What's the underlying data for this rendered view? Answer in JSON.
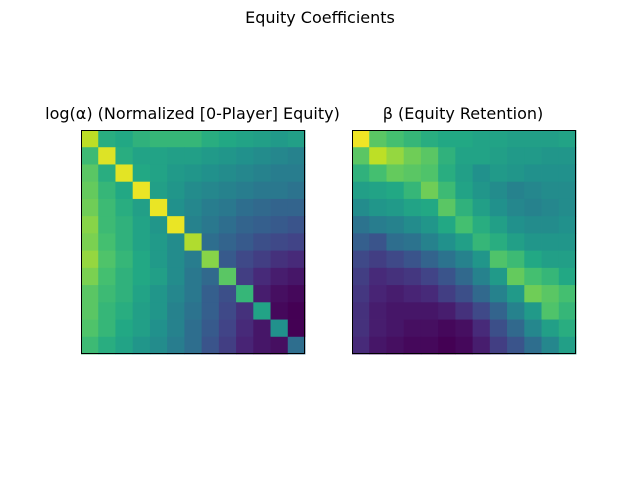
{
  "figure": {
    "title": "Equity Coefficients"
  },
  "chart_data": [
    {
      "type": "heatmap",
      "title": "log(α) (Normalized [0-Player] Equity)",
      "colormap": "viridis",
      "vmin": 0,
      "vmax": 1,
      "axes_visible": false,
      "rows": 13,
      "cols": 13,
      "values": [
        [
          0.9,
          0.62,
          0.6,
          0.64,
          0.66,
          0.66,
          0.66,
          0.62,
          0.6,
          0.58,
          0.56,
          0.54,
          0.56
        ],
        [
          0.68,
          0.95,
          0.62,
          0.58,
          0.58,
          0.56,
          0.56,
          0.54,
          0.52,
          0.5,
          0.48,
          0.46,
          0.44
        ],
        [
          0.74,
          0.62,
          0.96,
          0.6,
          0.58,
          0.54,
          0.52,
          0.5,
          0.48,
          0.46,
          0.44,
          0.42,
          0.42
        ],
        [
          0.76,
          0.66,
          0.6,
          0.97,
          0.56,
          0.52,
          0.48,
          0.46,
          0.44,
          0.42,
          0.4,
          0.4,
          0.38
        ],
        [
          0.78,
          0.68,
          0.62,
          0.56,
          0.97,
          0.5,
          0.46,
          0.42,
          0.4,
          0.36,
          0.34,
          0.32,
          0.32
        ],
        [
          0.82,
          0.68,
          0.64,
          0.58,
          0.52,
          0.97,
          0.44,
          0.4,
          0.36,
          0.32,
          0.3,
          0.28,
          0.26
        ],
        [
          0.8,
          0.7,
          0.64,
          0.58,
          0.54,
          0.48,
          0.88,
          0.36,
          0.32,
          0.28,
          0.24,
          0.22,
          0.2
        ],
        [
          0.84,
          0.72,
          0.66,
          0.6,
          0.54,
          0.48,
          0.42,
          0.82,
          0.28,
          0.22,
          0.18,
          0.14,
          0.12
        ],
        [
          0.8,
          0.7,
          0.64,
          0.6,
          0.56,
          0.48,
          0.4,
          0.34,
          0.74,
          0.18,
          0.12,
          0.08,
          0.06
        ],
        [
          0.74,
          0.68,
          0.64,
          0.58,
          0.52,
          0.46,
          0.4,
          0.3,
          0.24,
          0.66,
          0.08,
          0.04,
          0.02
        ],
        [
          0.74,
          0.66,
          0.62,
          0.56,
          0.52,
          0.44,
          0.38,
          0.3,
          0.22,
          0.14,
          0.58,
          0.02,
          0.0
        ],
        [
          0.72,
          0.66,
          0.6,
          0.56,
          0.5,
          0.44,
          0.36,
          0.28,
          0.2,
          0.12,
          0.06,
          0.5,
          0.0
        ],
        [
          0.68,
          0.62,
          0.58,
          0.52,
          0.48,
          0.42,
          0.36,
          0.26,
          0.18,
          0.1,
          0.06,
          0.04,
          0.36
        ]
      ]
    },
    {
      "type": "heatmap",
      "title": "β (Equity Retention)",
      "colormap": "viridis",
      "vmin": 0,
      "vmax": 1,
      "axes_visible": false,
      "rows": 13,
      "cols": 13,
      "values": [
        [
          0.98,
          0.74,
          0.7,
          0.66,
          0.62,
          0.6,
          0.6,
          0.58,
          0.58,
          0.56,
          0.56,
          0.56,
          0.58
        ],
        [
          0.74,
          0.9,
          0.84,
          0.78,
          0.74,
          0.64,
          0.58,
          0.58,
          0.56,
          0.54,
          0.54,
          0.52,
          0.52
        ],
        [
          0.64,
          0.7,
          0.76,
          0.74,
          0.72,
          0.62,
          0.56,
          0.5,
          0.54,
          0.52,
          0.5,
          0.5,
          0.5
        ],
        [
          0.56,
          0.58,
          0.6,
          0.66,
          0.78,
          0.68,
          0.58,
          0.52,
          0.48,
          0.44,
          0.46,
          0.48,
          0.48
        ],
        [
          0.48,
          0.52,
          0.54,
          0.58,
          0.6,
          0.74,
          0.64,
          0.56,
          0.5,
          0.46,
          0.44,
          0.46,
          0.48
        ],
        [
          0.38,
          0.42,
          0.44,
          0.48,
          0.52,
          0.6,
          0.7,
          0.62,
          0.56,
          0.5,
          0.48,
          0.48,
          0.5
        ],
        [
          0.3,
          0.26,
          0.36,
          0.38,
          0.44,
          0.5,
          0.56,
          0.66,
          0.62,
          0.56,
          0.52,
          0.52,
          0.52
        ],
        [
          0.22,
          0.18,
          0.22,
          0.26,
          0.32,
          0.38,
          0.44,
          0.52,
          0.72,
          0.68,
          0.6,
          0.56,
          0.56
        ],
        [
          0.18,
          0.12,
          0.14,
          0.16,
          0.2,
          0.26,
          0.34,
          0.44,
          0.54,
          0.76,
          0.7,
          0.66,
          0.6
        ],
        [
          0.16,
          0.1,
          0.08,
          0.1,
          0.12,
          0.18,
          0.24,
          0.34,
          0.44,
          0.54,
          0.78,
          0.74,
          0.7
        ],
        [
          0.14,
          0.08,
          0.06,
          0.06,
          0.06,
          0.08,
          0.14,
          0.22,
          0.32,
          0.44,
          0.54,
          0.72,
          0.66
        ],
        [
          0.14,
          0.08,
          0.06,
          0.04,
          0.04,
          0.02,
          0.04,
          0.12,
          0.24,
          0.34,
          0.46,
          0.56,
          0.62
        ],
        [
          0.12,
          0.06,
          0.04,
          0.02,
          0.02,
          0.0,
          0.02,
          0.08,
          0.18,
          0.26,
          0.36,
          0.46,
          0.56
        ]
      ]
    }
  ]
}
